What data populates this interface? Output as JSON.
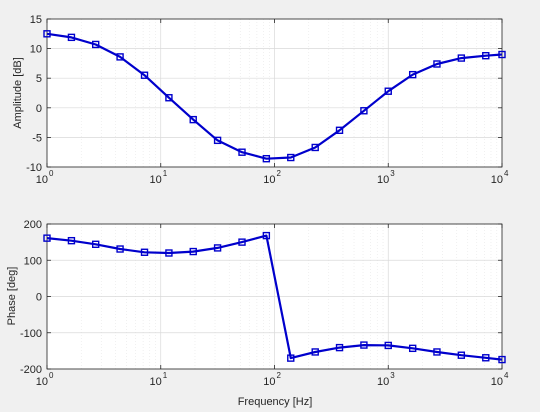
{
  "chart_data": [
    {
      "type": "line",
      "xscale": "log",
      "xlim": [
        1,
        10000
      ],
      "ylim": [
        -10,
        15
      ],
      "xlabel": "",
      "ylabel": "Amplitude [dB]",
      "grid": true,
      "x_ticks": [
        {
          "base": "10",
          "exp": "0"
        },
        {
          "base": "10",
          "exp": "1"
        },
        {
          "base": "10",
          "exp": "2"
        },
        {
          "base": "10",
          "exp": "3"
        },
        {
          "base": "10",
          "exp": "4"
        }
      ],
      "y_ticks": [
        "-10",
        "-5",
        "0",
        "5",
        "10",
        "15"
      ],
      "series": [
        {
          "marker": "square",
          "color": "#0000cc",
          "x": [
            1,
            1.64,
            2.68,
            4.39,
            7.2,
            11.8,
            19.3,
            31.6,
            51.8,
            84.8,
            139,
            228,
            373,
            611,
            1000,
            1640,
            2680,
            4390,
            7200,
            10000
          ],
          "y": [
            12.5,
            11.9,
            10.7,
            8.6,
            5.5,
            1.7,
            -2.0,
            -5.5,
            -7.5,
            -8.6,
            -8.4,
            -6.7,
            -3.8,
            -0.5,
            2.8,
            5.6,
            7.4,
            8.4,
            8.8,
            9.0
          ]
        }
      ]
    },
    {
      "type": "line",
      "xscale": "log",
      "xlim": [
        1,
        10000
      ],
      "ylim": [
        -200,
        200
      ],
      "xlabel": "Frequency [Hz]",
      "ylabel": "Phase [deg]",
      "grid": true,
      "x_ticks": [
        {
          "base": "10",
          "exp": "0"
        },
        {
          "base": "10",
          "exp": "1"
        },
        {
          "base": "10",
          "exp": "2"
        },
        {
          "base": "10",
          "exp": "3"
        },
        {
          "base": "10",
          "exp": "4"
        }
      ],
      "y_ticks": [
        "-200",
        "-100",
        "0",
        "100",
        "200"
      ],
      "series": [
        {
          "marker": "square",
          "color": "#0000cc",
          "x": [
            1,
            1.64,
            2.68,
            4.39,
            7.2,
            11.8,
            19.3,
            31.6,
            51.8,
            84.8,
            139,
            228,
            373,
            611,
            1000,
            1640,
            2680,
            4390,
            7200,
            10000
          ],
          "y": [
            161,
            154,
            144,
            131,
            122,
            120,
            124,
            134,
            150,
            168,
            -170,
            -153,
            -141,
            -134,
            -135,
            -143,
            -153,
            -162,
            -169,
            -174
          ]
        }
      ]
    }
  ]
}
